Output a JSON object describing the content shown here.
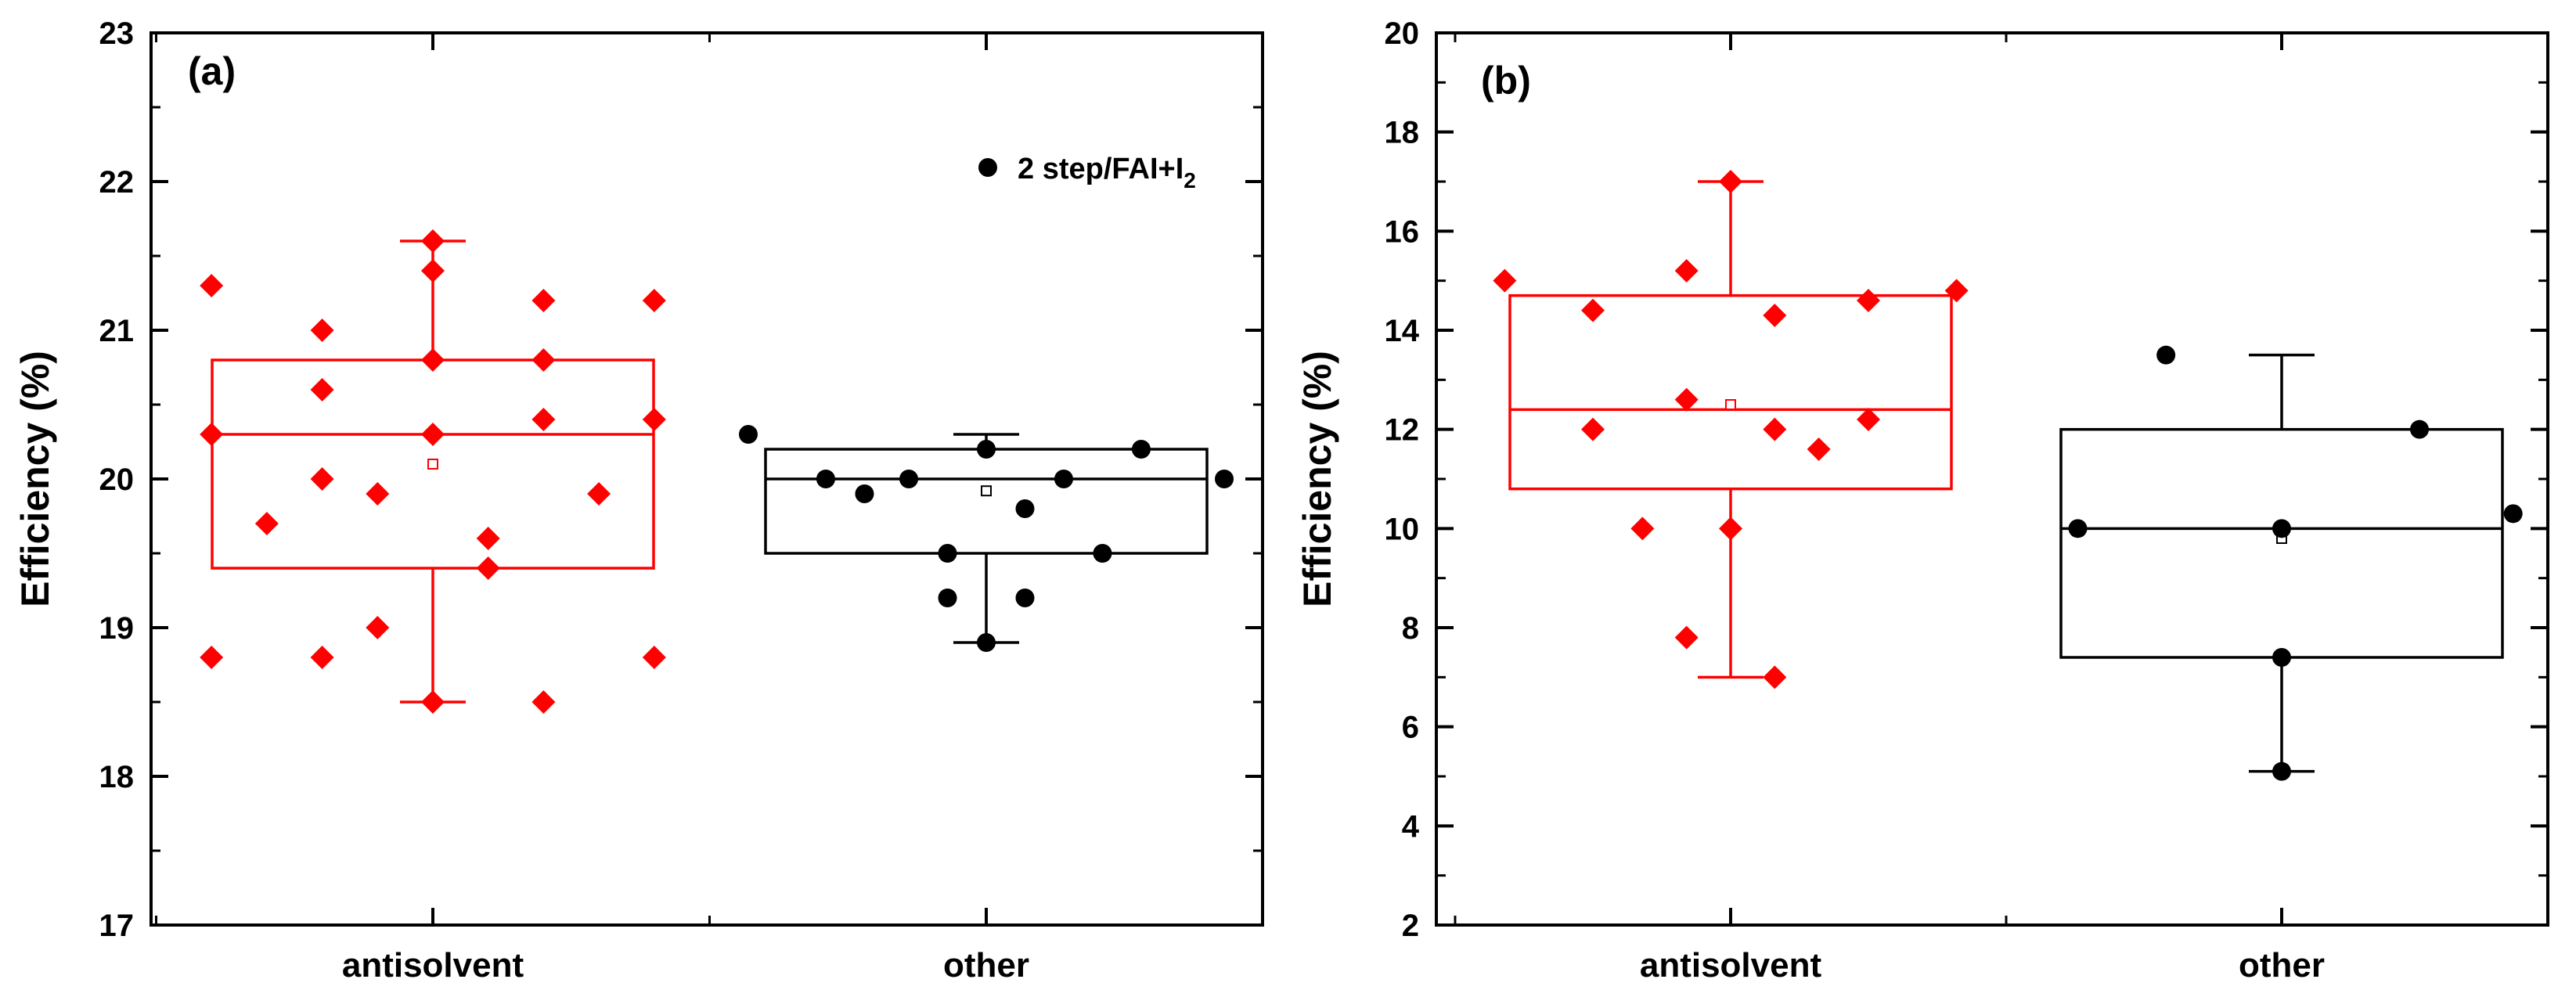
{
  "chart_data": [
    {
      "type": "box",
      "panel_label": "(a)",
      "title": "",
      "xlabel": "",
      "ylabel": "Efficiency (%)",
      "ylim": [
        17,
        23
      ],
      "yticks": [
        "17",
        "18",
        "19",
        "20",
        "21",
        "22",
        "23"
      ],
      "categories": [
        "antisolvent",
        "other"
      ],
      "legend": {
        "marker": "circle",
        "label_main": "2 step/FAI+I",
        "label_sub": "2",
        "placement": "top-right"
      },
      "series": [
        {
          "name": "antisolvent",
          "color": "#ff0000",
          "marker": "diamond",
          "box": {
            "q1": 19.4,
            "median": 20.3,
            "q3": 20.8,
            "whisker_low": 18.5,
            "whisker_high": 21.6,
            "mean": 20.1
          },
          "points": [
            {
              "offset": -0.4,
              "value": 21.3
            },
            {
              "offset": -0.4,
              "value": 20.3
            },
            {
              "offset": -0.4,
              "value": 18.8
            },
            {
              "offset": -0.3,
              "value": 19.7
            },
            {
              "offset": -0.2,
              "value": 21.0
            },
            {
              "offset": -0.2,
              "value": 20.6
            },
            {
              "offset": -0.2,
              "value": 20.0
            },
            {
              "offset": -0.2,
              "value": 18.8
            },
            {
              "offset": -0.1,
              "value": 19.9
            },
            {
              "offset": -0.1,
              "value": 19.0
            },
            {
              "offset": 0.0,
              "value": 21.6
            },
            {
              "offset": 0.0,
              "value": 21.4
            },
            {
              "offset": 0.0,
              "value": 20.8
            },
            {
              "offset": 0.0,
              "value": 20.3
            },
            {
              "offset": 0.0,
              "value": 18.5
            },
            {
              "offset": 0.1,
              "value": 19.6
            },
            {
              "offset": 0.1,
              "value": 19.4
            },
            {
              "offset": 0.2,
              "value": 21.2
            },
            {
              "offset": 0.2,
              "value": 20.8
            },
            {
              "offset": 0.2,
              "value": 20.4
            },
            {
              "offset": 0.2,
              "value": 18.5
            },
            {
              "offset": 0.3,
              "value": 19.9
            },
            {
              "offset": 0.4,
              "value": 21.2
            },
            {
              "offset": 0.4,
              "value": 20.4
            },
            {
              "offset": 0.4,
              "value": 18.8
            }
          ]
        },
        {
          "name": "other",
          "color": "#000000",
          "marker": "circle",
          "box": {
            "q1": 19.5,
            "median": 20.0,
            "q3": 20.2,
            "whisker_low": 18.9,
            "whisker_high": 20.3,
            "mean": 19.92
          },
          "points": [
            {
              "offset": -0.43,
              "value": 20.3
            },
            {
              "offset": -0.29,
              "value": 20.0
            },
            {
              "offset": -0.22,
              "value": 19.9
            },
            {
              "offset": -0.14,
              "value": 20.0
            },
            {
              "offset": -0.07,
              "value": 19.5
            },
            {
              "offset": -0.07,
              "value": 19.2
            },
            {
              "offset": 0.0,
              "value": 20.2
            },
            {
              "offset": 0.0,
              "value": 18.9
            },
            {
              "offset": 0.07,
              "value": 19.2
            },
            {
              "offset": 0.07,
              "value": 19.8
            },
            {
              "offset": 0.14,
              "value": 20.0
            },
            {
              "offset": 0.21,
              "value": 19.5
            },
            {
              "offset": 0.28,
              "value": 20.2
            },
            {
              "offset": 0.43,
              "value": 20.0
            }
          ]
        }
      ]
    },
    {
      "type": "box",
      "panel_label": "(b)",
      "title": "",
      "xlabel": "",
      "ylabel": "Efficiency (%)",
      "ylim": [
        2,
        20
      ],
      "yticks": [
        "2",
        "4",
        "6",
        "8",
        "10",
        "12",
        "14",
        "16",
        "18",
        "20"
      ],
      "categories": [
        "antisolvent",
        "other"
      ],
      "series": [
        {
          "name": "antisolvent",
          "color": "#ff0000",
          "marker": "diamond",
          "box": {
            "q1": 10.8,
            "median": 12.4,
            "q3": 14.7,
            "whisker_low": 7.0,
            "whisker_high": 17.0,
            "mean": 12.5
          },
          "points": [
            {
              "offset": -0.41,
              "value": 15.0
            },
            {
              "offset": -0.25,
              "value": 14.4
            },
            {
              "offset": -0.25,
              "value": 12.0
            },
            {
              "offset": -0.16,
              "value": 10.0
            },
            {
              "offset": -0.08,
              "value": 15.2
            },
            {
              "offset": -0.08,
              "value": 12.6
            },
            {
              "offset": -0.08,
              "value": 7.8
            },
            {
              "offset": 0.0,
              "value": 17.0
            },
            {
              "offset": 0.0,
              "value": 10.0
            },
            {
              "offset": 0.08,
              "value": 14.3
            },
            {
              "offset": 0.08,
              "value": 12.0
            },
            {
              "offset": 0.08,
              "value": 7.0
            },
            {
              "offset": 0.16,
              "value": 11.6
            },
            {
              "offset": 0.25,
              "value": 14.6
            },
            {
              "offset": 0.25,
              "value": 12.2
            },
            {
              "offset": 0.41,
              "value": 14.8
            }
          ]
        },
        {
          "name": "other",
          "color": "#000000",
          "marker": "circle",
          "box": {
            "q1": 7.4,
            "median": 10.0,
            "q3": 12.0,
            "whisker_low": 5.1,
            "whisker_high": 13.5,
            "mean": 9.8
          },
          "points": [
            {
              "offset": -0.37,
              "value": 10.0
            },
            {
              "offset": -0.21,
              "value": 13.5
            },
            {
              "offset": 0.0,
              "value": 10.0
            },
            {
              "offset": 0.0,
              "value": 7.4
            },
            {
              "offset": 0.0,
              "value": 5.1
            },
            {
              "offset": 0.25,
              "value": 12.0
            },
            {
              "offset": 0.42,
              "value": 10.3
            }
          ]
        }
      ]
    }
  ]
}
